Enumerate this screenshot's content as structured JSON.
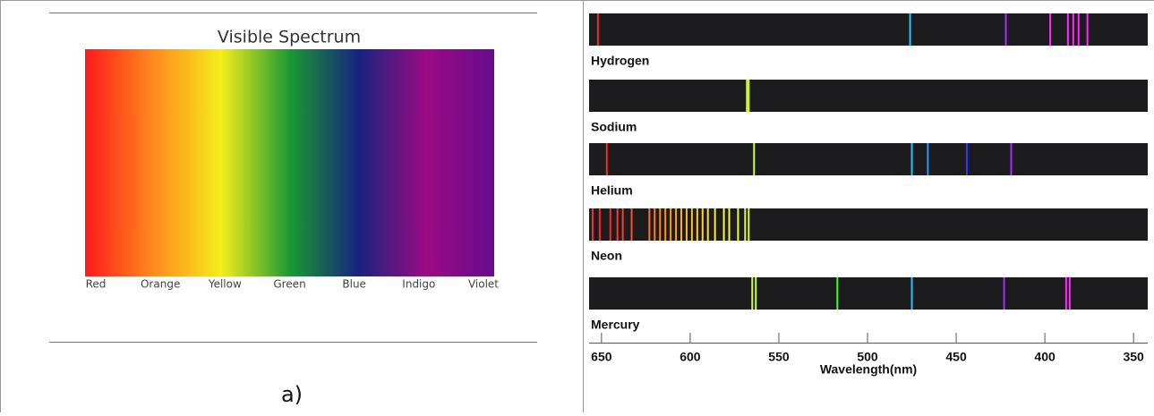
{
  "caption": "a)",
  "chart_data": [
    {
      "type": "gradient",
      "title": "Visible Spectrum",
      "categories": [
        "Red",
        "Orange",
        "Yellow",
        "Green",
        "Blue",
        "Indigo",
        "Violet"
      ],
      "colors": [
        "#ff1a1a",
        "#ff8a1e",
        "#f4ee1c",
        "#1a9a32",
        "#16247e",
        "#9c0a84",
        "#660c8c"
      ]
    },
    {
      "type": "emission",
      "xlabel": "Wavelength(nm)",
      "xlim": [
        657,
        342
      ],
      "xticks": [
        650,
        600,
        550,
        500,
        450,
        400,
        350
      ],
      "series": [
        {
          "name": "Hydrogen",
          "values": [
            652,
            476,
            422,
            397,
            387,
            384,
            381,
            376
          ]
        },
        {
          "name": "Sodium",
          "values": [
            568,
            567
          ]
        },
        {
          "name": "Helium",
          "values": [
            647,
            564,
            475,
            466,
            444,
            419
          ]
        },
        {
          "name": "Neon",
          "values": [
            655,
            651,
            645,
            641,
            638,
            633,
            623,
            620,
            617,
            614,
            611,
            608,
            605,
            602,
            599,
            596,
            593,
            590,
            586,
            581,
            578,
            573,
            569,
            567
          ]
        },
        {
          "name": "Mercury",
          "values": [
            565,
            563,
            517,
            475,
            423,
            388,
            386
          ]
        }
      ]
    }
  ]
}
